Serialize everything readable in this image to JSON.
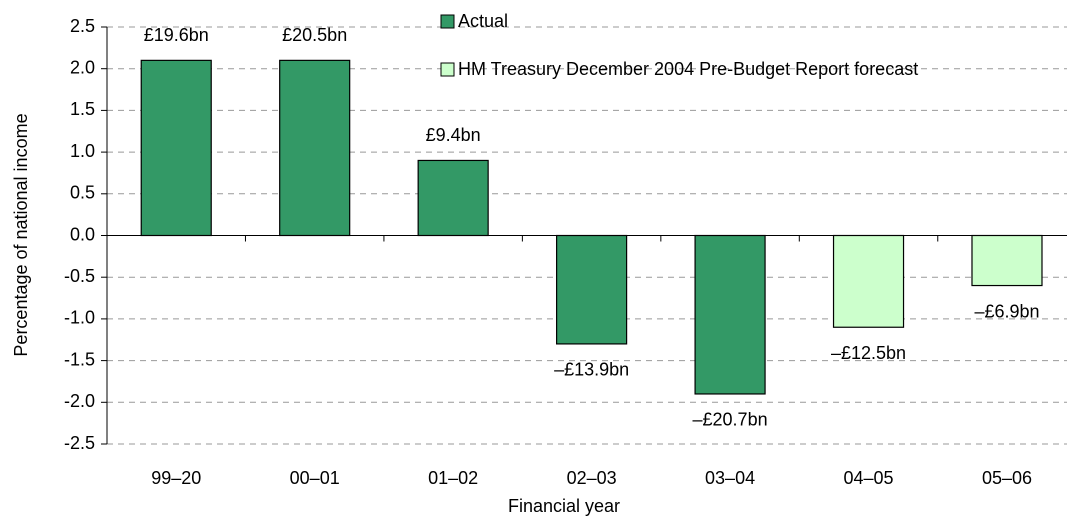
{
  "chart_data": {
    "type": "bar",
    "x_label": "Financial year",
    "y_label": "Percentage of national income",
    "categories": [
      "99–20",
      "00–01",
      "01–02",
      "02–03",
      "03–04",
      "04–05",
      "05–06"
    ],
    "series": [
      {
        "name": "Actual",
        "color": "#339966",
        "values": [
          2.1,
          2.1,
          0.9,
          -1.3,
          -1.9,
          null,
          null
        ],
        "value_labels": [
          "£19.6bn",
          "£20.5bn",
          "£9.4bn",
          "–£13.9bn",
          "–£20.7bn",
          null,
          null
        ]
      },
      {
        "name": "HM Treasury December 2004 Pre-Budget Report forecast",
        "color": "#ccffcc",
        "values": [
          null,
          null,
          null,
          null,
          null,
          -1.1,
          -0.6
        ],
        "value_labels": [
          null,
          null,
          null,
          null,
          null,
          "–£12.5bn",
          "–£6.9bn"
        ]
      }
    ],
    "ylim": [
      -2.5,
      2.5
    ],
    "yticks": [
      2.5,
      {
        "value": 2.0,
        "label": "2.0"
      },
      1.5,
      {
        "value": 1.0,
        "label": "1.0"
      },
      0.5,
      {
        "value": 0.0,
        "label": "0.0"
      },
      -0.5,
      {
        "value": -1.0,
        "label": "-1.0"
      },
      -1.5,
      {
        "value": -2.0,
        "label": "-2.0"
      },
      -2.5
    ],
    "grid": true
  }
}
